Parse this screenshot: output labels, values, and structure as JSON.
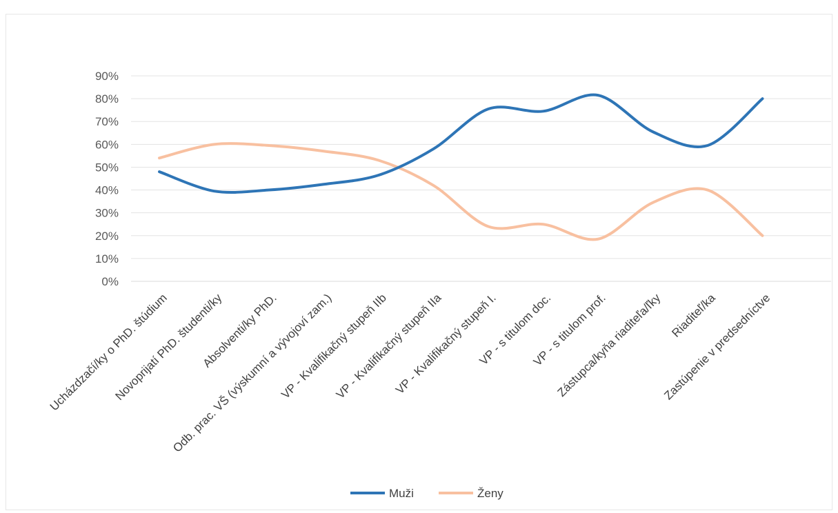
{
  "chart_data": {
    "type": "line",
    "categories": [
      "Ucházdzačí/ky o PhD. štúdium",
      "Novoprijatí PhD. študenti/ky",
      "Absolventi/ky PhD.",
      "Odb. prac. VŠ (výskumní a vývojoví zam.)",
      "VP - Kvalifikačný stupeň IIb",
      "VP - Kvalifikačný stupeň IIa",
      "VP - Kvalifikačný stupeň I.",
      "VP - s titulom doc.",
      "VP - s titulom prof.",
      "Zástupca/kyňa riaditeľa/ľky",
      "Riaditeľ/ka",
      "Zastúpenie v predsedníctve"
    ],
    "series": [
      {
        "name": "Muži",
        "color": "#2e75b6",
        "values": [
          48,
          39.5,
          40,
          42.5,
          46.5,
          58,
          75.5,
          74.5,
          81.5,
          65.5,
          59.5,
          80
        ]
      },
      {
        "name": "Ženy",
        "color": "#f8c0a0",
        "values": [
          54,
          60,
          59.5,
          57,
          53,
          42,
          24,
          25,
          18.5,
          34.5,
          40,
          20
        ]
      }
    ],
    "y_ticks": [
      "0%",
      "10%",
      "20%",
      "30%",
      "40%",
      "50%",
      "60%",
      "70%",
      "80%",
      "90%"
    ],
    "ylim": [
      0,
      90
    ],
    "grid": true,
    "legend_position": "bottom"
  }
}
